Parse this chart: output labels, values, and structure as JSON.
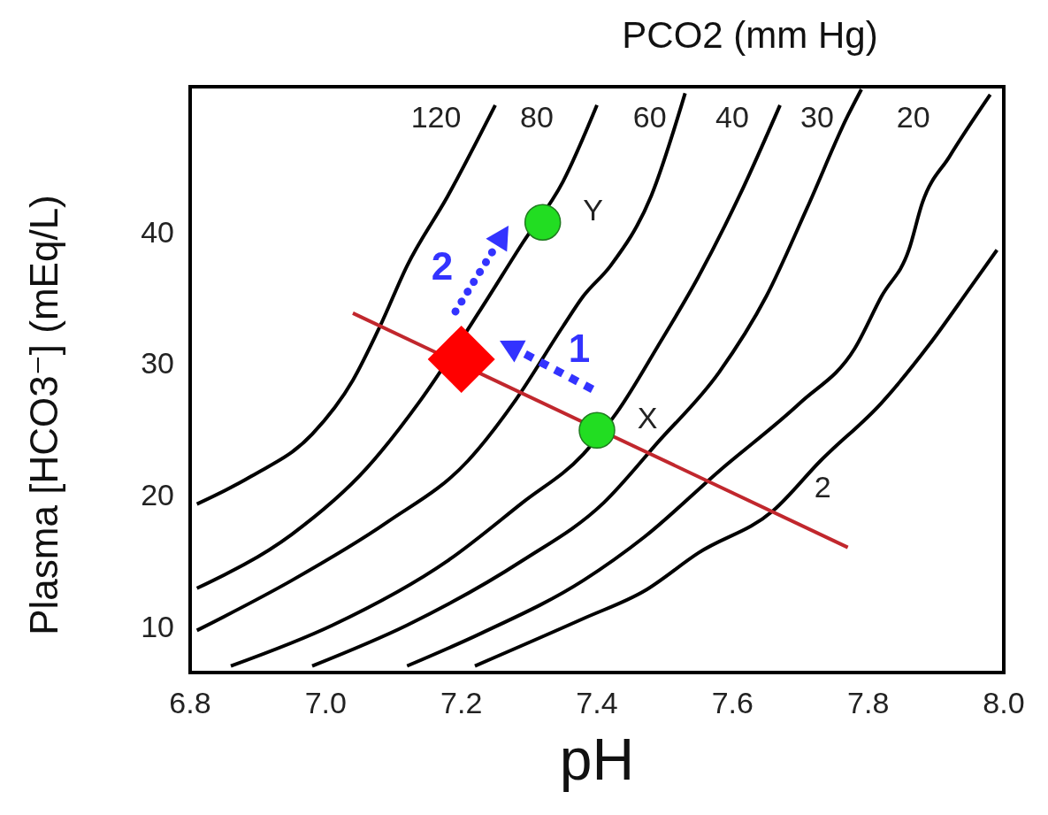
{
  "chart_data": {
    "type": "line",
    "title": "PCO2 (mm Hg)",
    "xlabel": "pH",
    "ylabel": "Plasma [HCO3⁻] (mEq/L)",
    "xlim": [
      6.8,
      8.0
    ],
    "xticks": [
      6.8,
      {
        "value": 7,
        "label": "7.0"
      },
      7.2,
      7.4,
      7.6,
      7.8,
      {
        "value": 8,
        "label": "8.0"
      }
    ],
    "ylim": [
      6.5,
      51
    ],
    "yticks": [
      10,
      20,
      30,
      40
    ],
    "series": [
      {
        "name": "120",
        "color": "#000000",
        "marker": "none",
        "x": [
          6.81,
          6.89,
          6.98,
          7.04,
          7.08,
          7.12,
          7.18,
          7.25
        ],
        "values": [
          19.3,
          21.4,
          24.6,
          28.7,
          32.8,
          37.4,
          42.7,
          49.6
        ]
      },
      {
        "name": "80",
        "color": "#000000",
        "marker": "none",
        "x": [
          6.81,
          6.95,
          7.06,
          7.14,
          7.23,
          7.29,
          7.35,
          7.4
        ],
        "values": [
          12.9,
          17.0,
          22.0,
          27.2,
          34.2,
          39.1,
          43.8,
          49.6
        ]
      },
      {
        "name": "60",
        "color": "#000000",
        "marker": "none",
        "x": [
          6.81,
          6.95,
          7.09,
          7.21,
          7.28,
          7.35,
          7.38,
          7.42,
          7.48,
          7.53
        ],
        "values": [
          9.7,
          13.5,
          17.9,
          22.6,
          27.2,
          32.8,
          35.1,
          37.4,
          42.7,
          50.5
        ]
      },
      {
        "name": "40",
        "color": "#000000",
        "marker": "none",
        "x": [
          6.86,
          7.01,
          7.18,
          7.29,
          7.38,
          7.43,
          7.49,
          7.55,
          7.61,
          7.67
        ],
        "values": [
          7.0,
          10.1,
          15.0,
          19.4,
          23.1,
          26.3,
          31.3,
          36.6,
          42.7,
          49.6
        ]
      },
      {
        "name": "30",
        "color": "#000000",
        "marker": "none",
        "x": [
          6.98,
          7.12,
          7.29,
          7.41,
          7.49,
          7.58,
          7.65,
          7.71,
          7.77,
          7.79
        ],
        "values": [
          7.0,
          10.1,
          15.0,
          19.4,
          24.0,
          29.3,
          35.1,
          41.8,
          48.8,
          50.8
        ]
      },
      {
        "name": "20",
        "color": "#000000",
        "marker": "none",
        "x": [
          7.12,
          7.23,
          7.38,
          7.47,
          7.58,
          7.7,
          7.78,
          7.82,
          7.86,
          7.88,
          7.92,
          7.98
        ],
        "values": [
          7.0,
          9.5,
          13.5,
          16.8,
          21.8,
          27.0,
          31.1,
          35.1,
          38.6,
          42.2,
          45.7,
          50.4
        ]
      },
      {
        "name": "2",
        "color": "#000000",
        "marker": "none",
        "x": [
          7.22,
          7.38,
          7.47,
          7.55,
          7.66,
          7.73,
          7.82,
          7.89,
          7.95,
          7.99
        ],
        "values": [
          7.0,
          10.6,
          12.7,
          15.6,
          18.8,
          22.6,
          27.0,
          31.4,
          35.7,
          38.6
        ]
      },
      {
        "color": "#c1272d",
        "marker": "none",
        "x": [
          7.04,
          7.77
        ],
        "values": [
          33.8,
          16.0
        ]
      },
      {
        "type": "scatter",
        "color": "#22dd22",
        "marker": "circle",
        "x": [
          7.4,
          7.32
        ],
        "values": [
          24.9,
          40.7
        ]
      },
      {
        "type": "scatter",
        "color": "#ff0000",
        "marker": "diamond",
        "x": [
          7.2
        ],
        "values": [
          30.3
        ]
      }
    ],
    "annotations": [
      {
        "text": "X",
        "x": 7.4,
        "y": 24.9
      },
      {
        "text": "Y",
        "x": 7.32,
        "y": 40.7
      },
      "1",
      "2"
    ]
  }
}
